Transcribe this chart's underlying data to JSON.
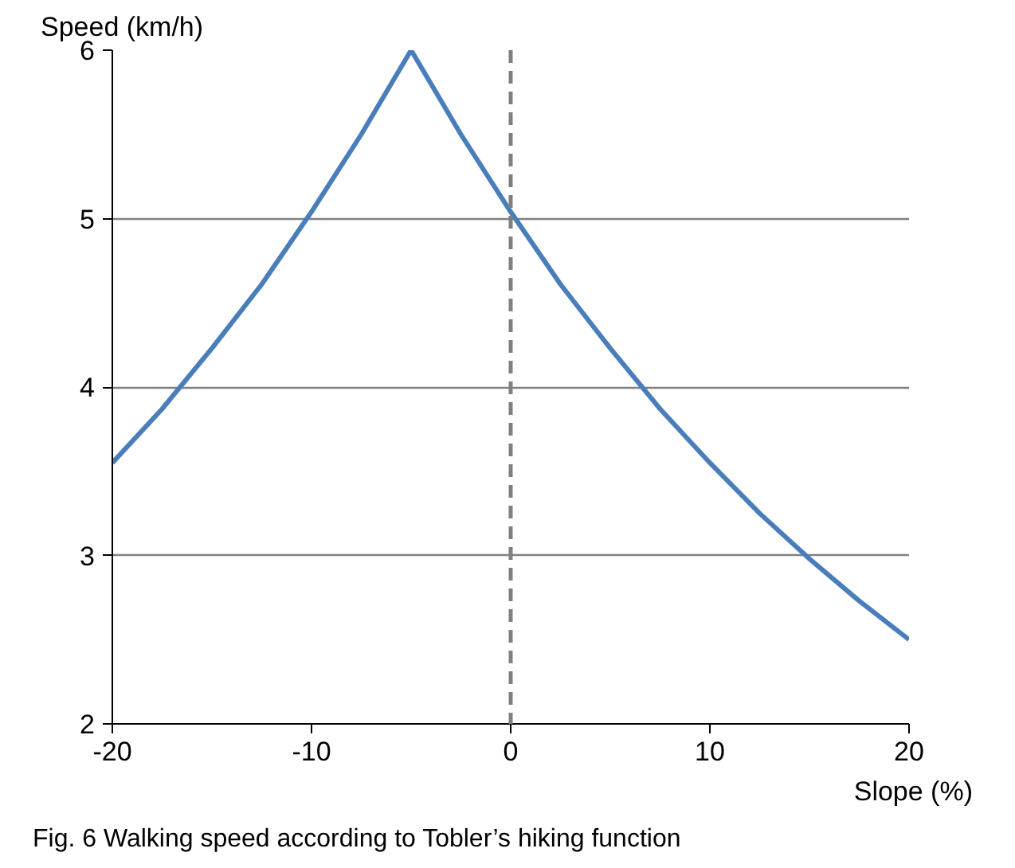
{
  "chart_data": {
    "type": "line",
    "ylabel": "Speed (km/h)",
    "xlabel": "Slope (%)",
    "annotations": [
      "Fig. 6  Walking speed according to Tobler’s hiking function"
    ],
    "x": [
      -20,
      -17.5,
      -15,
      -12.5,
      -10,
      -7.5,
      -5,
      -2.5,
      0,
      2.5,
      5,
      7.5,
      10,
      12.5,
      15,
      17.5,
      20
    ],
    "series": [
      {
        "color": "#4a7ebb",
        "values": [
          3.55,
          3.87,
          4.23,
          4.61,
          5.04,
          5.5,
          6.0,
          5.5,
          5.04,
          4.61,
          4.23,
          3.87,
          3.55,
          3.25,
          2.98,
          2.73,
          2.5
        ]
      }
    ],
    "xlim": [
      -20,
      20
    ],
    "ylim": [
      2,
      6
    ],
    "xticks": [
      -20,
      -10,
      0,
      10,
      20
    ],
    "yticks": [
      2,
      3,
      4,
      5,
      6
    ],
    "ref_lines": [
      {
        "axis": "x",
        "value": 0,
        "color": "#808080",
        "line_style": "dashed"
      }
    ],
    "grid": "y",
    "marker": "none",
    "line_style": "solid"
  }
}
